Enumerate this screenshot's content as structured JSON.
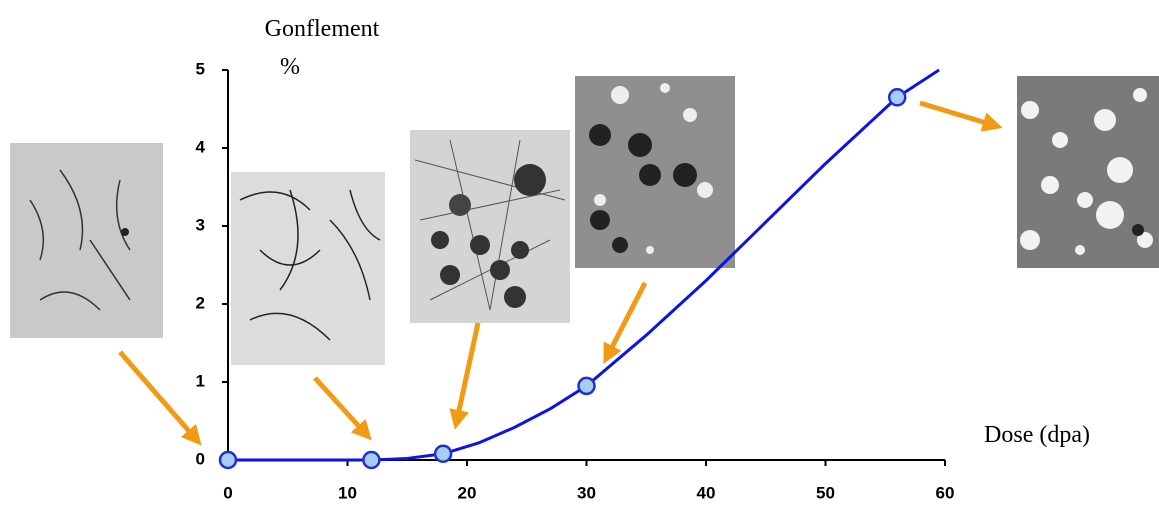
{
  "chart_data": {
    "type": "line",
    "y_label": "Gonflement",
    "y_unit": "%",
    "x_label": "Dose (dpa)",
    "xlim": [
      0,
      60
    ],
    "xticks": [
      0,
      10,
      20,
      30,
      40,
      50,
      60
    ],
    "ylim": [
      0,
      5
    ],
    "yticks": [
      0,
      1,
      2,
      3,
      4,
      5
    ],
    "line": {
      "color": "#0a14e6",
      "x": [
        0,
        12,
        15,
        18,
        21,
        24,
        27,
        30,
        35,
        40,
        45,
        50,
        56,
        59.5
      ],
      "values": [
        0,
        0,
        0.02,
        0.08,
        0.22,
        0.42,
        0.66,
        0.95,
        1.6,
        2.3,
        3.05,
        3.8,
        4.65,
        5
      ]
    },
    "points": {
      "color": "#a8ccf2",
      "edge_color": "#2030d0",
      "x": [
        0,
        12,
        18,
        30,
        56
      ],
      "values": [
        0,
        0,
        0.08,
        0.95,
        4.65
      ]
    }
  }
}
